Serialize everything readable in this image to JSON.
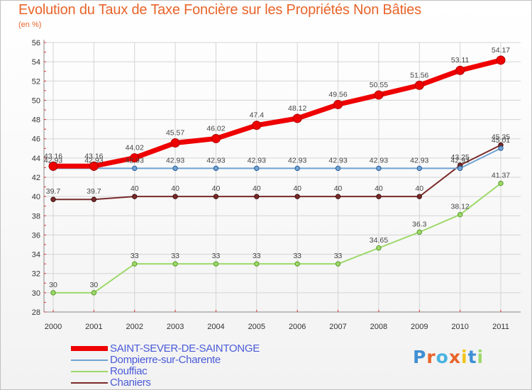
{
  "header": {
    "title": "Evolution du Taux de Taxe Foncière sur les Propriétés Non Bâties",
    "subtitle": "(en %)"
  },
  "logo": {
    "text": "Proxiti"
  },
  "colors": {
    "title": "#e8642a",
    "legend_text": "#4a5bd9",
    "grid": "#d4d4d4"
  },
  "chart_data": {
    "type": "line",
    "title": "Evolution du Taux de Taxe Foncière sur les Propriétés Non Bâties",
    "ylabel": "(en %)",
    "xlabel": "",
    "ylim": [
      28,
      56
    ],
    "yticks": [
      28,
      30,
      32,
      34,
      36,
      38,
      40,
      42,
      44,
      46,
      48,
      50,
      52,
      54,
      56
    ],
    "grid": true,
    "legend_position": "bottom-left",
    "categories": [
      "2000",
      "2001",
      "2002",
      "2003",
      "2004",
      "2005",
      "2006",
      "2007",
      "2008",
      "2009",
      "2010",
      "2011"
    ],
    "series": [
      {
        "name": "SAINT-SEVER-DE-SAINTONGE",
        "color": "#ee0000",
        "values": [
          43.16,
          43.16,
          44.02,
          45.57,
          46.02,
          47.4,
          48.12,
          49.56,
          50.55,
          51.56,
          53.11,
          54.17
        ],
        "labels": [
          "43.16",
          "43.16",
          "44.02",
          "45.57",
          "46.02",
          "47.4",
          "48.12",
          "49.56",
          "50.55",
          "51.56",
          "53.11",
          "54.17"
        ]
      },
      {
        "name": "Dompierre-sur-Charente",
        "color": "#6fa3d3",
        "values": [
          42.93,
          42.93,
          42.93,
          42.93,
          42.93,
          42.93,
          42.93,
          42.93,
          42.93,
          42.93,
          42.93,
          45.01
        ],
        "labels": [
          "42.93",
          "42.93",
          "42.93",
          "42.93",
          "42.93",
          "42.93",
          "42.93",
          "42.93",
          "42.93",
          "42.93",
          "42.93",
          "45.01"
        ]
      },
      {
        "name": "Rouffiac",
        "color": "#9dd96a",
        "values": [
          30,
          30,
          33,
          33,
          33,
          33,
          33,
          33,
          34.65,
          36.3,
          38.12,
          41.37
        ],
        "labels": [
          "30",
          "30",
          "33",
          "33",
          "33",
          "33",
          "33",
          "33",
          "34.65",
          "36.3",
          "38.12",
          "41.37"
        ]
      },
      {
        "name": "Chaniers",
        "color": "#7a2a2a",
        "values": [
          39.7,
          39.7,
          40,
          40,
          40,
          40,
          40,
          40,
          40,
          40,
          43.25,
          45.35
        ],
        "labels": [
          "39.7",
          "39.7",
          "40",
          "40",
          "40",
          "40",
          "40",
          "40",
          "40",
          "40",
          "43.25",
          "45.35"
        ]
      }
    ]
  }
}
